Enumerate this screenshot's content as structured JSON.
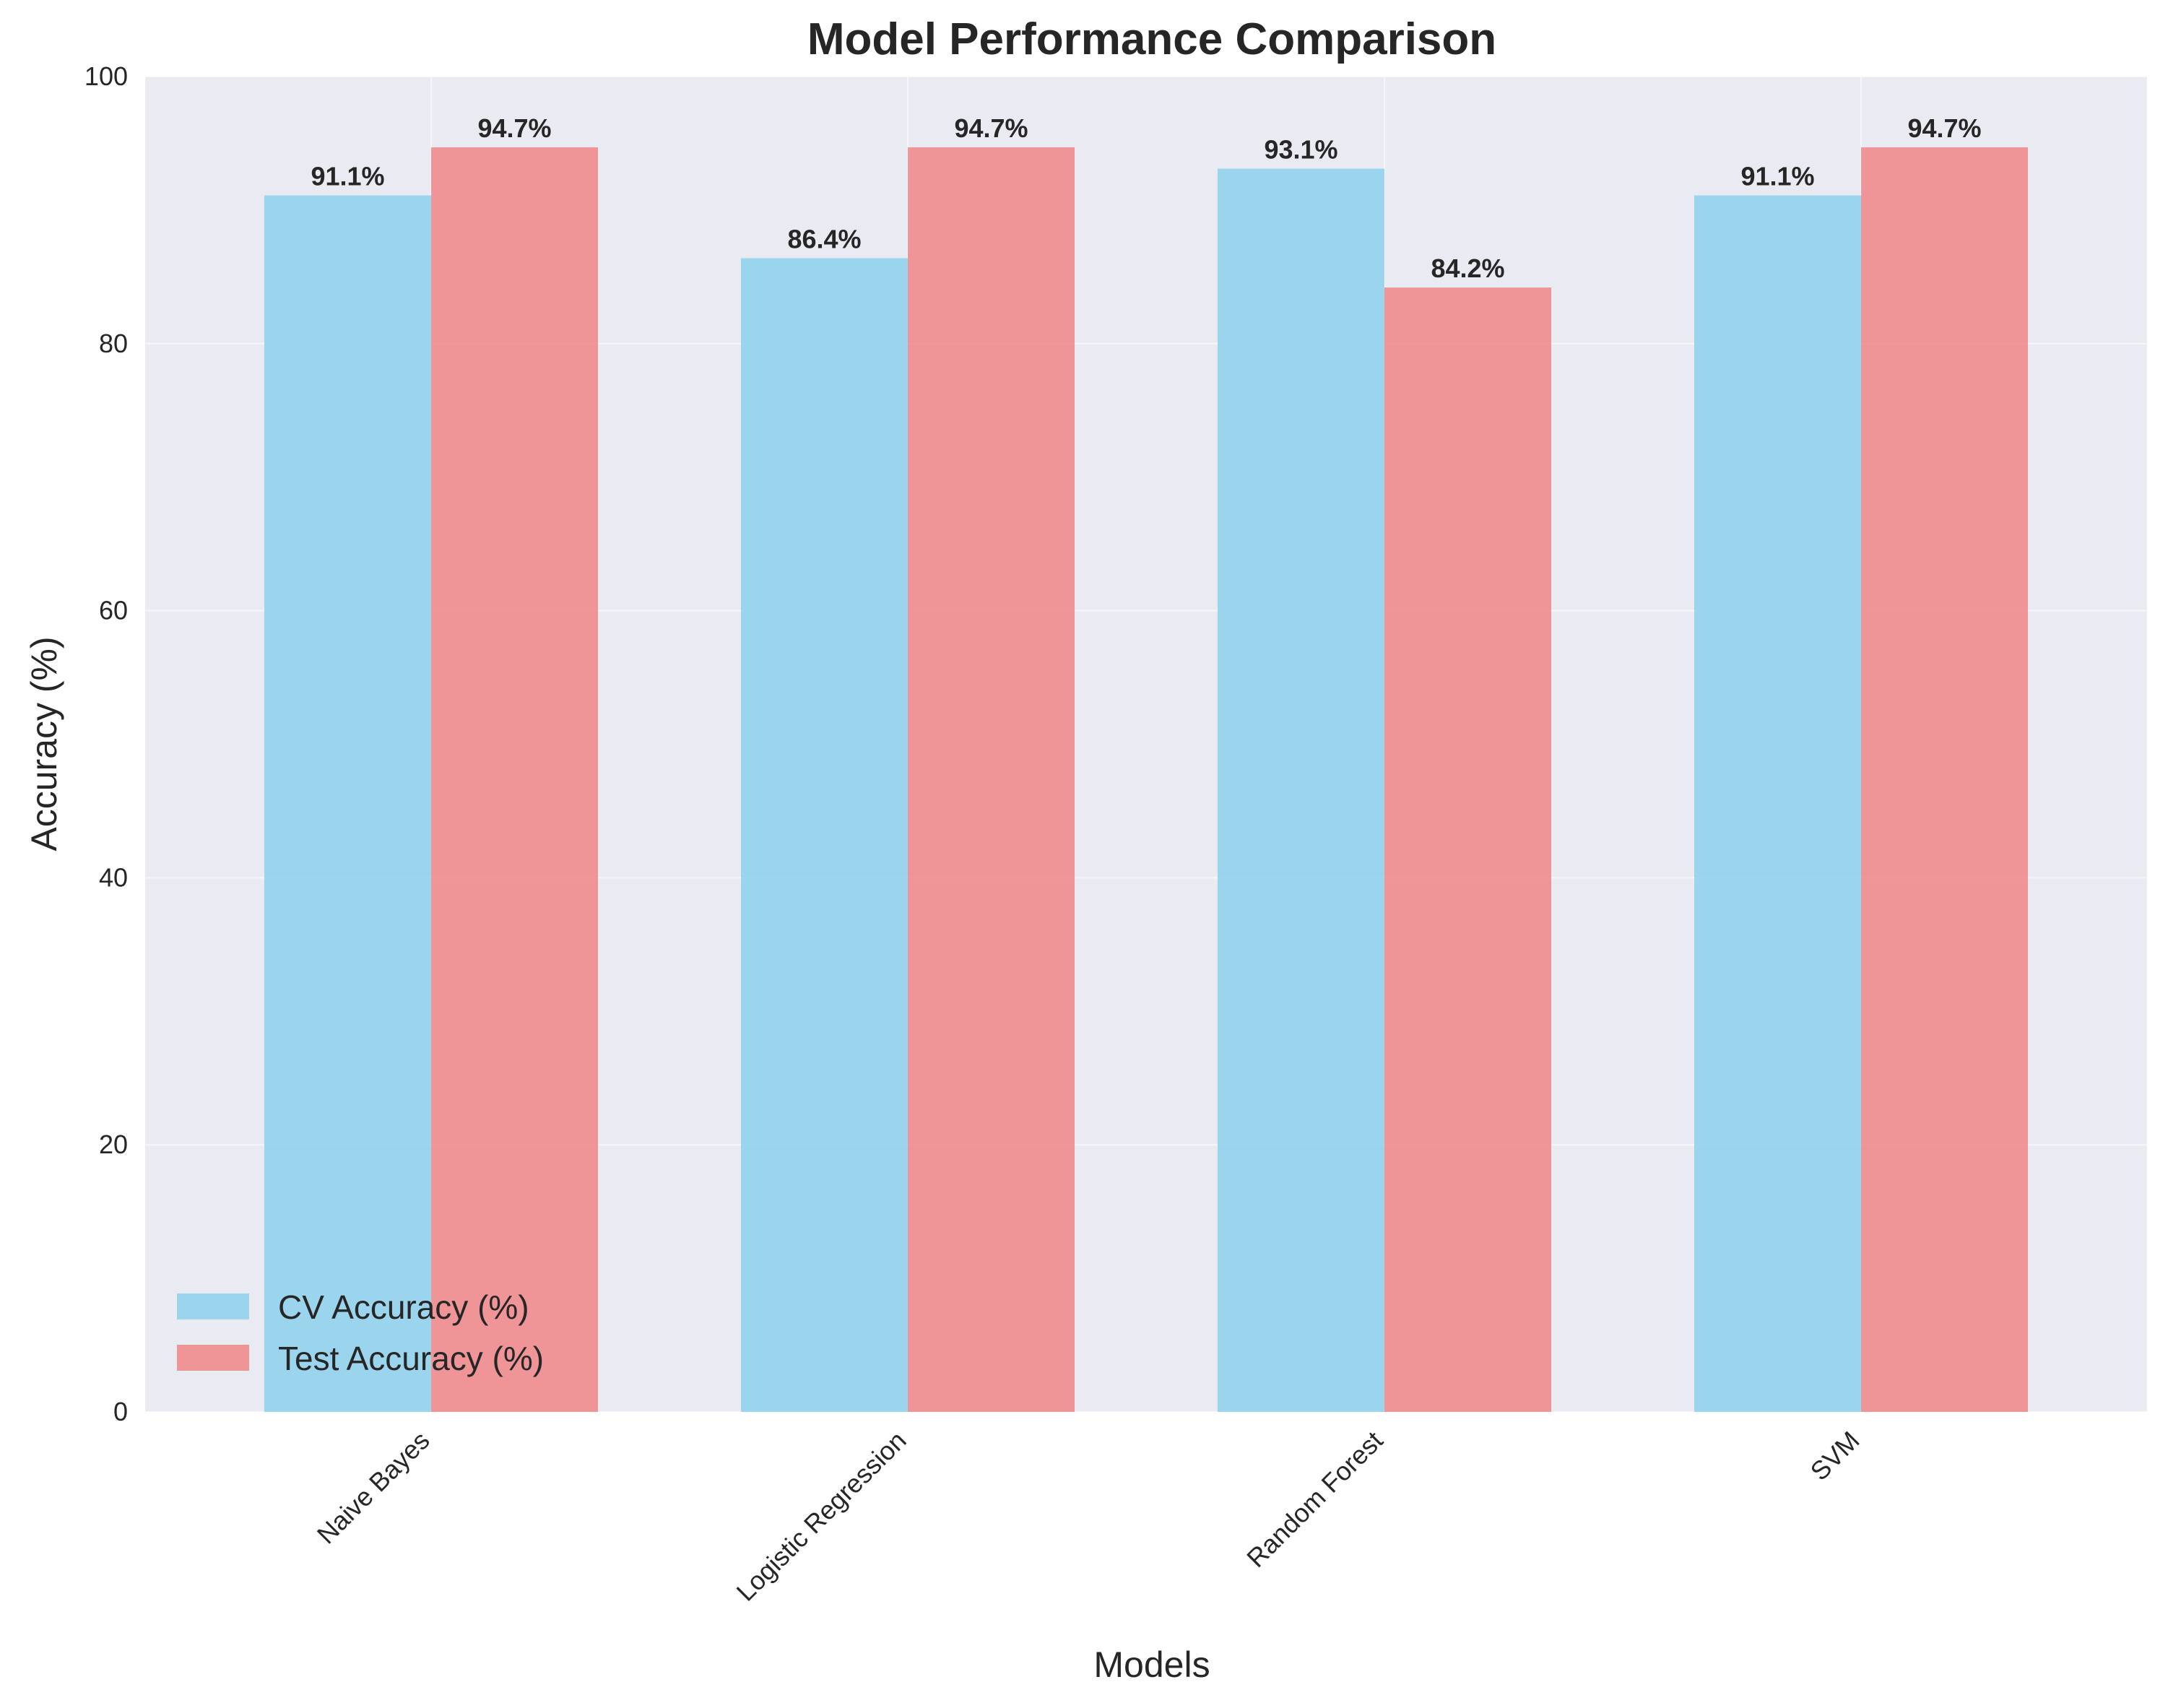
{
  "chart_data": {
    "type": "bar",
    "title": "Model Performance Comparison",
    "xlabel": "Models",
    "ylabel": "Accuracy (%)",
    "categories": [
      "Naive Bayes",
      "Logistic Regression",
      "Random Forest",
      "SVM"
    ],
    "series": [
      {
        "name": "CV Accuracy (%)",
        "values": [
          91.1,
          86.4,
          93.1,
          91.1
        ],
        "labels": [
          "91.1%",
          "86.4%",
          "93.1%",
          "91.1%"
        ],
        "color": "#87ceeb"
      },
      {
        "name": "Test Accuracy (%)",
        "values": [
          94.7,
          94.7,
          84.2,
          94.7
        ],
        "labels": [
          "94.7%",
          "94.7%",
          "84.2%",
          "94.7%"
        ],
        "color": "#f08080"
      }
    ],
    "ylim": [
      0,
      100
    ],
    "yticks": [
      0,
      20,
      40,
      60,
      80,
      100
    ],
    "ytick_labels": [
      "0",
      "20",
      "40",
      "60",
      "80",
      "100"
    ],
    "grid": true,
    "legend_position": "lower left",
    "background_color": "#eaeaf2"
  }
}
